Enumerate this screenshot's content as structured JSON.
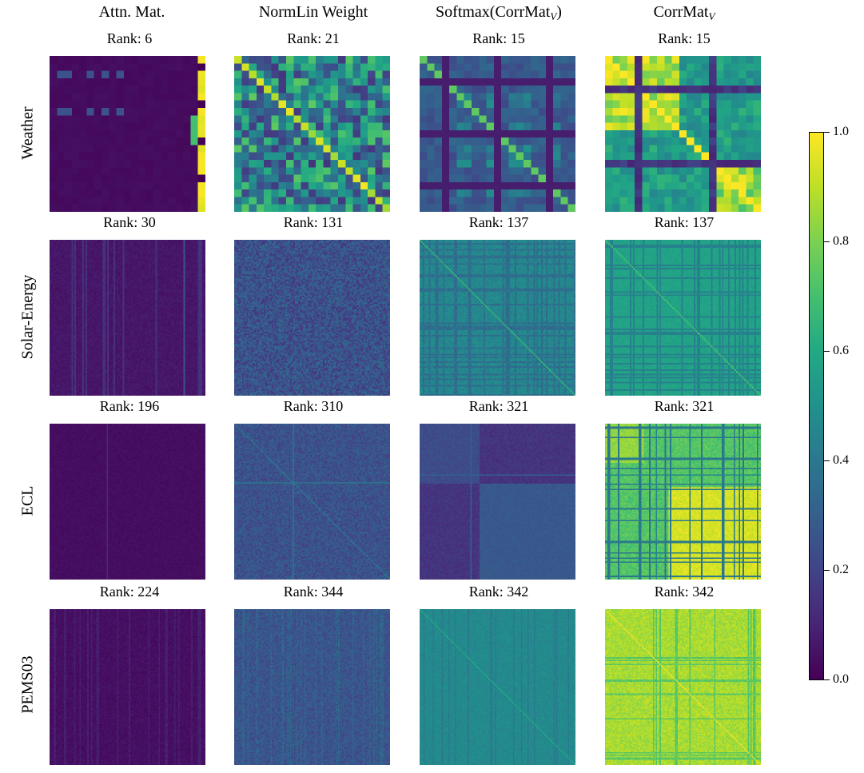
{
  "chart_data": {
    "type": "heatmap",
    "columns": [
      {
        "title": "Attn. Mat.",
        "sub": ""
      },
      {
        "title": "NormLin Weight",
        "sub": ""
      },
      {
        "title": "Softmax(CorrMat",
        "sub": "V",
        "close": ")"
      },
      {
        "title": "CorrMat",
        "sub": "V",
        "close": ""
      }
    ],
    "rows": [
      "Weather",
      "Solar-Energy",
      "ECL",
      "PEMS03"
    ],
    "ranks": [
      [
        "Rank: 6",
        "Rank: 21",
        "Rank: 15",
        "Rank: 15"
      ],
      [
        "Rank: 30",
        "Rank: 131",
        "Rank: 137",
        "Rank: 137"
      ],
      [
        "Rank: 196",
        "Rank: 310",
        "Rank: 321",
        "Rank: 321"
      ],
      [
        "Rank: 224",
        "Rank: 344",
        "Rank: 342",
        "Rank: 342"
      ]
    ],
    "colorbar": {
      "colormap": "viridis",
      "range": [
        0.0,
        1.0
      ],
      "ticks": [
        "0.0",
        "0.2",
        "0.4",
        "0.6",
        "0.8",
        "1.0"
      ]
    },
    "panel_description": [
      [
        "dark background with bright right column",
        "mixed values with bright diagonal",
        "block structure with diagonal",
        "bright blocks with diagonal"
      ],
      [
        "dark with faint vertical stripes",
        "uniform noise around 0.25",
        "teal grid with diagonal",
        "teal-green grid with diagonal"
      ],
      [
        "dark with faint vertical lines",
        "dark blue noise with faint cross",
        "dark blue blocks",
        "green-yellow blocks"
      ],
      [
        "dark with faint stripes",
        "blue noise",
        "teal uniform",
        "yellow-green uniform"
      ]
    ]
  }
}
